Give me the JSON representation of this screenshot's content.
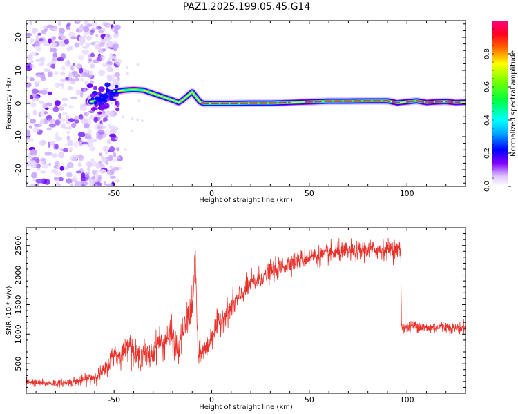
{
  "title": "PAZ1.2025.199.05.45.G14",
  "chart_data": [
    {
      "type": "heatmap",
      "xlabel": "Height of straight line (km)",
      "ylabel": "Frequency (Hz)",
      "xlim": [
        -95,
        130
      ],
      "ylim": [
        -25,
        25
      ],
      "xticks": [
        -50,
        0,
        50,
        100
      ],
      "yticks": [
        -20,
        -10,
        0,
        10,
        20
      ],
      "colorbar": {
        "label": "Normalized spectral amplitude",
        "range": [
          0,
          1
        ],
        "ticks": [
          "0.0",
          "0.2",
          "0.4",
          "0.6",
          "0.8"
        ],
        "colormap": [
          "#ffffff",
          "#8000ff",
          "#0000ff",
          "#00ffff",
          "#00ff00",
          "#ffff00",
          "#ff0000",
          "#ff0080"
        ]
      },
      "ridge": {
        "x": [
          -62,
          -58,
          -55,
          -52,
          -50,
          -45,
          -40,
          -35,
          -30,
          -25,
          -20,
          -17,
          -15,
          -12,
          -10,
          -8,
          -6,
          -4,
          0,
          10,
          20,
          30,
          40,
          50,
          60,
          70,
          80,
          90,
          95,
          100,
          105,
          110,
          115,
          120,
          125,
          130
        ],
        "y": [
          0.5,
          1,
          2,
          3,
          3.5,
          4,
          4.2,
          4,
          3,
          2,
          1,
          0.3,
          1,
          2.5,
          3.5,
          2,
          0.5,
          0,
          0,
          0,
          0.1,
          0.1,
          0.3,
          0.5,
          0.7,
          0.7,
          0.8,
          0.8,
          0.2,
          0.5,
          0.8,
          0.3,
          0.5,
          0.6,
          0.3,
          0.4
        ]
      },
      "noise_region_x": [
        -95,
        -55
      ]
    },
    {
      "type": "line",
      "xlabel": "Height of straight line (km)",
      "ylabel": "SNR (10 * v/v)",
      "xlim": [
        -95,
        130
      ],
      "ylim": [
        0,
        2800
      ],
      "xticks": [
        -50,
        0,
        50,
        100
      ],
      "yticks": [
        500,
        1000,
        1500,
        2000,
        2500
      ],
      "color": "#e8332c",
      "series": [
        {
          "x": [
            -95,
            -90,
            -85,
            -80,
            -75,
            -70,
            -65,
            -60,
            -55,
            -52,
            -50,
            -48,
            -45,
            -42,
            -40,
            -37,
            -35,
            -32,
            -30,
            -27,
            -25,
            -22,
            -20,
            -17,
            -15,
            -13,
            -11,
            -9.5,
            -8.5,
            -7,
            -5,
            -2,
            0,
            5,
            10,
            15,
            20,
            25,
            30,
            35,
            40,
            45,
            50,
            55,
            60,
            65,
            70,
            75,
            80,
            85,
            90,
            95,
            96.8,
            97.2,
            100,
            105,
            110,
            115,
            120,
            125,
            130
          ],
          "y": [
            200,
            180,
            170,
            175,
            180,
            200,
            230,
            280,
            380,
            550,
            700,
            620,
            720,
            900,
            650,
            600,
            700,
            600,
            700,
            900,
            800,
            1000,
            950,
            700,
            1000,
            1200,
            1400,
            1500,
            2450,
            600,
            700,
            780,
            1000,
            1250,
            1450,
            1650,
            1850,
            1950,
            2050,
            2120,
            2200,
            2260,
            2300,
            2330,
            2360,
            2390,
            2400,
            2410,
            2420,
            2430,
            2440,
            2440,
            2450,
            1150,
            1100,
            1150,
            1100,
            1120,
            1130,
            1100,
            1110
          ],
          "noise_amplitude": [
            60,
            60,
            60,
            60,
            60,
            80,
            80,
            100,
            120,
            150,
            180,
            180,
            180,
            200,
            200,
            200,
            200,
            200,
            200,
            220,
            220,
            250,
            250,
            250,
            250,
            250,
            250,
            250,
            250,
            200,
            200,
            200,
            200,
            200,
            200,
            180,
            180,
            170,
            160,
            160,
            150,
            150,
            150,
            150,
            150,
            150,
            150,
            150,
            150,
            150,
            150,
            150,
            150,
            90,
            90,
            90,
            90,
            90,
            90,
            90,
            90
          ]
        }
      ]
    }
  ]
}
